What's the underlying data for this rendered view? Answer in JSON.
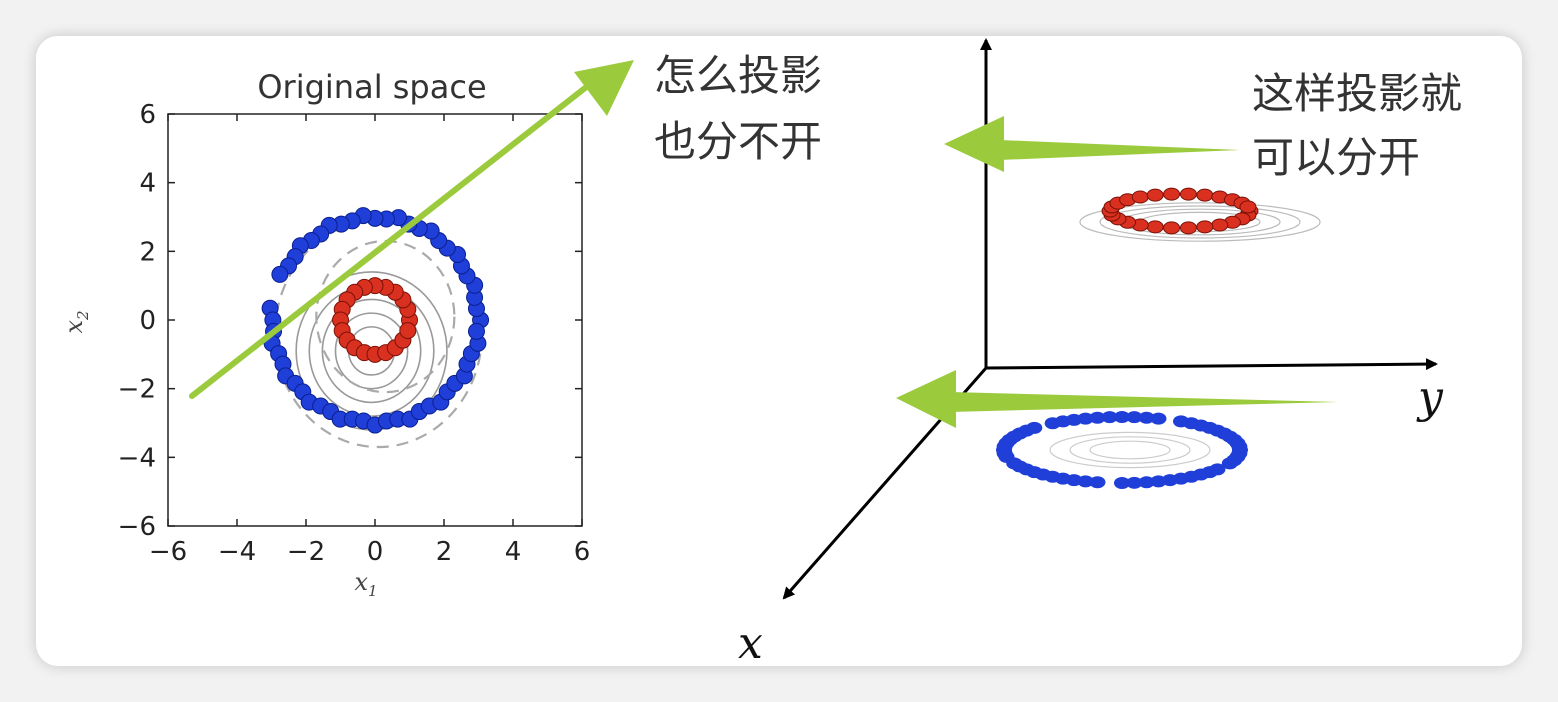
{
  "left_plot": {
    "title": "Original space",
    "xlabel": "x",
    "xlabel_sub": "1",
    "ylabel": "x",
    "ylabel_sub": "2",
    "x_ticks": [
      "−6",
      "−4",
      "−2",
      "0",
      "2",
      "4",
      "6"
    ],
    "y_ticks": [
      "6",
      "4",
      "2",
      "0",
      "−2",
      "−4",
      "−6"
    ],
    "xlim": [
      -6,
      6
    ],
    "ylim": [
      -6,
      6
    ]
  },
  "annotations": {
    "left_line1": "怎么投影",
    "left_line2": "也分不开",
    "right_line1": "这样投影就",
    "right_line2": "可以分开"
  },
  "axes3d": {
    "x_label": "x",
    "y_label": "y"
  },
  "colors": {
    "inner_ring": "#d9301f",
    "outer_ring": "#1f3fd8",
    "arrow": "#9bcb3c",
    "contour": "#999999"
  }
}
